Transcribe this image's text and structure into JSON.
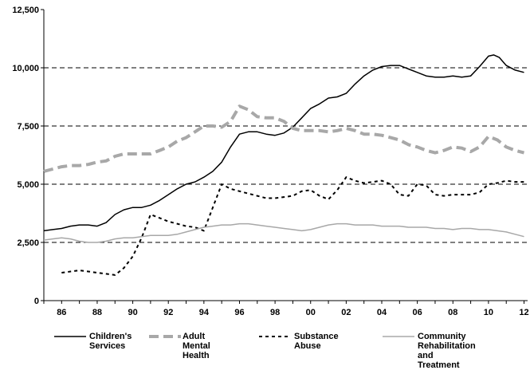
{
  "chart_data": {
    "type": "line",
    "title": "",
    "xlabel": "",
    "ylabel": "",
    "xlim": [
      1985,
      2012.2
    ],
    "ylim": [
      0,
      12500
    ],
    "y_ticks": [
      0,
      2500,
      5000,
      7500,
      10000,
      12500
    ],
    "y_tick_labels": [
      "0",
      "2,500",
      "5,000",
      "7,500",
      "10,000",
      "12,500"
    ],
    "x_ticks": [
      1986,
      1988,
      1990,
      1992,
      1994,
      1996,
      1998,
      2000,
      2002,
      2004,
      2006,
      2008,
      2010,
      2012
    ],
    "x_tick_labels": [
      "86",
      "88",
      "90",
      "92",
      "94",
      "96",
      "98",
      "00",
      "02",
      "04",
      "06",
      "08",
      "10",
      "12"
    ],
    "grid": "dashed horizontal at 2,500 intervals",
    "legend_position": "bottom",
    "series": [
      {
        "name": "Children's Services",
        "color": "#000000",
        "style": "solid",
        "x": [
          1985,
          1985.5,
          1986,
          1986.5,
          1987,
          1987.5,
          1988,
          1988.5,
          1989,
          1989.5,
          1990,
          1990.5,
          1991,
          1991.5,
          1992,
          1992.5,
          1993,
          1993.5,
          1994,
          1994.5,
          1995,
          1995.5,
          1996,
          1996.5,
          1997,
          1997.5,
          1998,
          1998.5,
          1999,
          1999.5,
          2000,
          2000.5,
          2001,
          2001.5,
          2002,
          2002.5,
          2003,
          2003.5,
          2004,
          2004.5,
          2005,
          2005.5,
          2006,
          2006.5,
          2007,
          2007.5,
          2008,
          2008.5,
          2009,
          2009.5,
          2010,
          2010.3,
          2010.6,
          2011,
          2011.5,
          2012
        ],
        "values": [
          3000,
          3050,
          3100,
          3200,
          3250,
          3250,
          3200,
          3350,
          3700,
          3900,
          4000,
          4000,
          4100,
          4300,
          4550,
          4800,
          5000,
          5100,
          5300,
          5550,
          5950,
          6600,
          7150,
          7250,
          7250,
          7150,
          7100,
          7200,
          7450,
          7850,
          8250,
          8450,
          8700,
          8750,
          8900,
          9300,
          9650,
          9900,
          10050,
          10100,
          10100,
          9950,
          9800,
          9650,
          9600,
          9600,
          9650,
          9600,
          9650,
          10050,
          10500,
          10550,
          10450,
          10100,
          9900,
          9800
        ]
      },
      {
        "name": "Adult Mental Health",
        "color": "#a8a8a8",
        "style": "dashed-thick",
        "x": [
          1985,
          1985.5,
          1986,
          1986.5,
          1987,
          1987.5,
          1988,
          1988.5,
          1989,
          1989.5,
          1990,
          1990.5,
          1991,
          1991.5,
          1992,
          1992.5,
          1993,
          1993.5,
          1994,
          1994.5,
          1995,
          1995.5,
          1996,
          1996.5,
          1997,
          1997.5,
          1998,
          1998.5,
          1999,
          1999.5,
          2000,
          2000.5,
          2001,
          2001.5,
          2002,
          2002.5,
          2003,
          2003.5,
          2004,
          2004.5,
          2005,
          2005.5,
          2006,
          2006.5,
          2007,
          2007.5,
          2008,
          2008.5,
          2009,
          2009.5,
          2010,
          2010.5,
          2011,
          2011.5,
          2012
        ],
        "values": [
          5550,
          5650,
          5750,
          5800,
          5800,
          5850,
          5950,
          6000,
          6200,
          6300,
          6300,
          6300,
          6300,
          6450,
          6600,
          6850,
          7000,
          7250,
          7500,
          7500,
          7450,
          7700,
          8350,
          8200,
          7900,
          7850,
          7850,
          7700,
          7400,
          7300,
          7300,
          7300,
          7250,
          7300,
          7400,
          7300,
          7150,
          7150,
          7100,
          7000,
          6900,
          6700,
          6600,
          6450,
          6350,
          6450,
          6600,
          6550,
          6400,
          6600,
          7050,
          6900,
          6600,
          6450,
          6350
        ]
      },
      {
        "name": "Substance Abuse",
        "color": "#000000",
        "style": "dotted",
        "x": [
          1986,
          1986.5,
          1987,
          1987.5,
          1988,
          1988.5,
          1989,
          1989.5,
          1990,
          1990.5,
          1991,
          1991.5,
          1992,
          1992.5,
          1993,
          1993.5,
          1994,
          1994.5,
          1995,
          1995.5,
          1996,
          1996.5,
          1997,
          1997.5,
          1998,
          1998.5,
          1999,
          1999.5,
          2000,
          2000.5,
          2001,
          2001.5,
          2002,
          2002.5,
          2003,
          2003.5,
          2004,
          2004.5,
          2005,
          2005.5,
          2006,
          2006.5,
          2007,
          2007.5,
          2008,
          2008.5,
          2009,
          2009.5,
          2010,
          2010.5,
          2011,
          2011.5,
          2012
        ],
        "values": [
          1200,
          1250,
          1300,
          1250,
          1200,
          1150,
          1100,
          1400,
          1900,
          2700,
          3700,
          3550,
          3400,
          3300,
          3200,
          3150,
          3000,
          4000,
          5000,
          4800,
          4700,
          4600,
          4500,
          4400,
          4400,
          4450,
          4500,
          4700,
          4750,
          4500,
          4350,
          4750,
          5300,
          5150,
          5050,
          5100,
          5150,
          5000,
          4550,
          4500,
          5000,
          4950,
          4550,
          4500,
          4550,
          4550,
          4550,
          4650,
          5000,
          5050,
          5150,
          5100,
          5100
        ]
      },
      {
        "name": "Community Rehabilitation and Treatment",
        "color": "#a8a8a8",
        "style": "solid-thin",
        "x": [
          1985,
          1985.5,
          1986,
          1986.5,
          1987,
          1987.5,
          1988,
          1988.5,
          1989,
          1989.5,
          1990,
          1990.5,
          1991,
          1991.5,
          1992,
          1992.5,
          1993,
          1993.5,
          1994,
          1994.5,
          1995,
          1995.5,
          1996,
          1996.5,
          1997,
          1997.5,
          1998,
          1998.5,
          1999,
          1999.5,
          2000,
          2000.5,
          2001,
          2001.5,
          2002,
          2002.5,
          2003,
          2003.5,
          2004,
          2004.5,
          2005,
          2005.5,
          2006,
          2006.5,
          2007,
          2007.5,
          2008,
          2008.5,
          2009,
          2009.5,
          2010,
          2010.5,
          2011,
          2011.5,
          2012
        ],
        "values": [
          2600,
          2650,
          2700,
          2650,
          2550,
          2500,
          2500,
          2550,
          2650,
          2700,
          2700,
          2750,
          2800,
          2800,
          2800,
          2850,
          2950,
          3050,
          3150,
          3200,
          3250,
          3250,
          3300,
          3300,
          3250,
          3200,
          3150,
          3100,
          3050,
          3000,
          3050,
          3150,
          3250,
          3300,
          3300,
          3250,
          3250,
          3250,
          3200,
          3200,
          3200,
          3150,
          3150,
          3150,
          3100,
          3100,
          3050,
          3100,
          3100,
          3050,
          3050,
          3000,
          2950,
          2850,
          2750
        ]
      }
    ]
  },
  "legend": [
    {
      "label": "Children's\nServices"
    },
    {
      "label": "Adult\nMental Health"
    },
    {
      "label": "Substance Abuse"
    },
    {
      "label": "Community\nRehabilitation and\nTreatment"
    }
  ]
}
